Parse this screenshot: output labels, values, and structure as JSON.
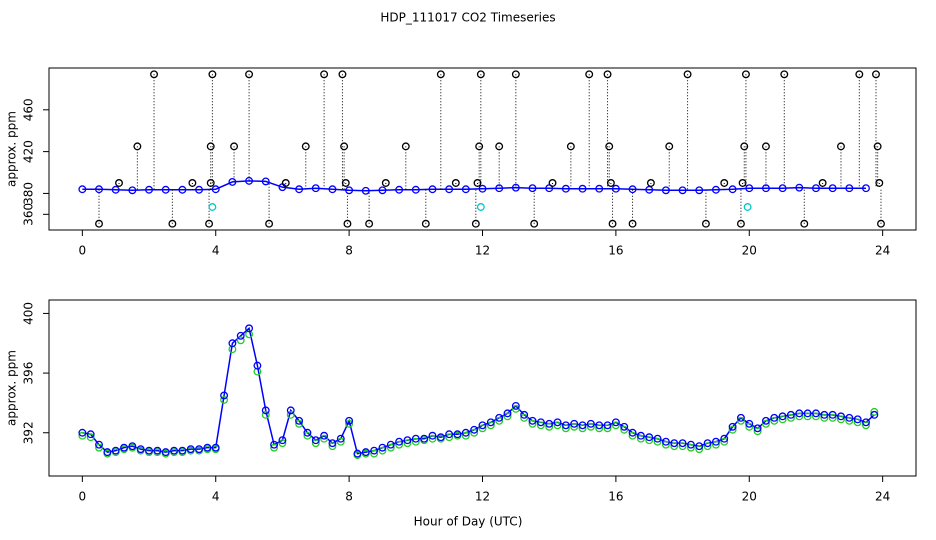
{
  "chart_data": [
    {
      "type": "scatter",
      "title": "HDP_111017  CO2 Timeseries",
      "ylabel": "approx. ppm",
      "xlim": [
        -1,
        25
      ],
      "xticks": [
        0,
        4,
        8,
        12,
        16,
        20,
        24
      ],
      "ylim": [
        345,
        500
      ],
      "yticks": [
        360,
        380,
        420,
        460
      ],
      "series": [
        {
          "color": "#0000ff",
          "connect": true,
          "x": [
            0,
            0.5,
            1,
            1.5,
            2,
            2.5,
            3,
            3.5,
            4,
            4.5,
            5,
            5.5,
            6,
            6.5,
            7,
            7.5,
            8,
            8.5,
            9,
            9.5,
            10,
            10.5,
            11,
            11.5,
            12,
            12.5,
            13,
            13.5,
            14,
            14.5,
            15,
            15.5,
            16,
            16.5,
            17,
            17.5,
            18,
            18.5,
            19,
            19.5,
            20,
            20.5,
            21,
            21.5,
            22,
            22.5,
            23,
            23.5
          ],
          "values": [
            384,
            384,
            383.5,
            383,
            383.5,
            383.5,
            383.5,
            383.5,
            384,
            391,
            392,
            391.5,
            386,
            384,
            385,
            384,
            383,
            382.5,
            383,
            383.5,
            383.5,
            384,
            384,
            384,
            384.5,
            385,
            385.5,
            385,
            385,
            384.5,
            384.5,
            384.5,
            384.5,
            384,
            383.5,
            383,
            383,
            383,
            383.5,
            384,
            385,
            385,
            385,
            385.5,
            385,
            385,
            385,
            385
          ]
        },
        {
          "color": "#000000",
          "drops": true,
          "x": [
            0.5,
            1.1,
            1.65,
            2.15,
            2.7,
            3.3,
            3.8,
            3.85,
            3.85,
            3.9,
            4.55,
            5.0,
            5.6,
            6.1,
            6.7,
            7.25,
            7.8,
            7.85,
            7.9,
            7.95,
            8.6,
            9.1,
            9.7,
            10.3,
            10.75,
            11.2,
            11.8,
            11.85,
            11.9,
            11.95,
            12.5,
            13.0,
            13.55,
            14.1,
            14.65,
            15.2,
            15.75,
            15.8,
            15.85,
            15.9,
            16.5,
            17.05,
            17.6,
            18.15,
            18.7,
            19.25,
            19.75,
            19.8,
            19.85,
            19.9,
            20.5,
            21.05,
            21.65,
            22.2,
            22.75,
            23.3,
            23.8,
            23.85,
            23.9,
            23.95
          ],
          "values": [
            351,
            390,
            425,
            494,
            351,
            390,
            351,
            390,
            425,
            494,
            425,
            494,
            351,
            390,
            425,
            494,
            494,
            425,
            390,
            351,
            351,
            390,
            425,
            351,
            494,
            390,
            351,
            390,
            425,
            494,
            425,
            494,
            351,
            390,
            425,
            494,
            494,
            425,
            390,
            351,
            351,
            390,
            425,
            494,
            351,
            390,
            351,
            390,
            425,
            494,
            425,
            494,
            351,
            390,
            425,
            494,
            494,
            425,
            390,
            351
          ]
        },
        {
          "color": "#00c8c8",
          "x": [
            3.9,
            11.95,
            19.95
          ],
          "values": [
            367,
            367,
            367
          ]
        }
      ]
    },
    {
      "type": "scatter",
      "ylabel": "approx. ppm",
      "xlabel": "Hour of Day (UTC)",
      "xlim": [
        -1,
        25
      ],
      "xticks": [
        0,
        4,
        8,
        12,
        16,
        20,
        24
      ],
      "ylim": [
        389.1,
        400.9
      ],
      "yticks": [
        392,
        396,
        400
      ],
      "series": [
        {
          "color": "#22cc22",
          "x": [
            0,
            0.25,
            0.5,
            0.75,
            1,
            1.25,
            1.5,
            1.75,
            2,
            2.25,
            2.5,
            2.75,
            3,
            3.25,
            3.5,
            3.75,
            4,
            4.25,
            4.5,
            4.75,
            5,
            5.25,
            5.5,
            5.75,
            6,
            6.25,
            6.5,
            6.75,
            7,
            7.25,
            7.5,
            7.75,
            8,
            8.25,
            8.5,
            8.75,
            9,
            9.25,
            9.5,
            9.75,
            10,
            10.25,
            10.5,
            10.75,
            11,
            11.25,
            11.5,
            11.75,
            12,
            12.25,
            12.5,
            12.75,
            13,
            13.25,
            13.5,
            13.75,
            14,
            14.25,
            14.5,
            14.75,
            15,
            15.25,
            15.5,
            15.75,
            16,
            16.25,
            16.5,
            16.75,
            17,
            17.25,
            17.5,
            17.75,
            18,
            18.25,
            18.5,
            18.75,
            19,
            19.25,
            19.5,
            19.75,
            20,
            20.25,
            20.5,
            20.75,
            21,
            21.25,
            21.5,
            21.75,
            22,
            22.25,
            22.5,
            22.75,
            23,
            23.25,
            23.5,
            23.75
          ],
          "values": [
            391.8,
            391.7,
            391.0,
            390.6,
            390.7,
            390.9,
            391.0,
            390.8,
            390.7,
            390.7,
            390.6,
            390.7,
            390.7,
            390.8,
            390.8,
            390.9,
            390.9,
            394.2,
            397.6,
            398.2,
            398.6,
            396.1,
            393.2,
            391.0,
            391.3,
            393.2,
            392.6,
            391.8,
            391.3,
            391.6,
            391.1,
            391.4,
            392.6,
            390.5,
            390.6,
            390.6,
            390.8,
            391.0,
            391.2,
            391.3,
            391.4,
            391.5,
            391.6,
            391.6,
            391.7,
            391.8,
            391.8,
            392.0,
            392.3,
            392.5,
            392.8,
            393.1,
            393.6,
            393.0,
            392.6,
            392.5,
            392.4,
            392.5,
            392.3,
            392.4,
            392.3,
            392.4,
            392.3,
            392.3,
            392.5,
            392.2,
            391.8,
            391.6,
            391.5,
            391.4,
            391.2,
            391.1,
            391.1,
            391.0,
            390.9,
            391.1,
            391.2,
            391.4,
            392.2,
            392.8,
            392.4,
            392.1,
            392.6,
            392.8,
            392.9,
            393.0,
            393.1,
            393.1,
            393.1,
            393.0,
            393.0,
            392.9,
            392.8,
            392.7,
            392.5,
            393.4
          ]
        },
        {
          "color": "#0000ff",
          "connect": true,
          "x": [
            0,
            0.25,
            0.5,
            0.75,
            1,
            1.25,
            1.5,
            1.75,
            2,
            2.25,
            2.5,
            2.75,
            3,
            3.25,
            3.5,
            3.75,
            4,
            4.25,
            4.5,
            4.75,
            5,
            5.25,
            5.5,
            5.75,
            6,
            6.25,
            6.5,
            6.75,
            7,
            7.25,
            7.5,
            7.75,
            8,
            8.25,
            8.5,
            8.75,
            9,
            9.25,
            9.5,
            9.75,
            10,
            10.25,
            10.5,
            10.75,
            11,
            11.25,
            11.5,
            11.75,
            12,
            12.25,
            12.5,
            12.75,
            13,
            13.25,
            13.5,
            13.75,
            14,
            14.25,
            14.5,
            14.75,
            15,
            15.25,
            15.5,
            15.75,
            16,
            16.25,
            16.5,
            16.75,
            17,
            17.25,
            17.5,
            17.75,
            18,
            18.25,
            18.5,
            18.75,
            19,
            19.25,
            19.5,
            19.75,
            20,
            20.25,
            20.5,
            20.75,
            21,
            21.25,
            21.5,
            21.75,
            22,
            22.25,
            22.5,
            22.75,
            23,
            23.25,
            23.5,
            23.75
          ],
          "values": [
            392.0,
            391.9,
            391.2,
            390.7,
            390.8,
            391.0,
            391.1,
            390.9,
            390.8,
            390.8,
            390.7,
            390.8,
            390.8,
            390.9,
            390.9,
            391.0,
            391.0,
            394.5,
            398.0,
            398.5,
            399.0,
            396.5,
            393.5,
            391.2,
            391.5,
            393.5,
            392.8,
            392.0,
            391.5,
            391.8,
            391.3,
            391.6,
            392.8,
            390.6,
            390.7,
            390.8,
            391.0,
            391.2,
            391.4,
            391.5,
            391.6,
            391.6,
            391.8,
            391.7,
            391.9,
            391.9,
            392.0,
            392.2,
            392.5,
            392.7,
            393.0,
            393.3,
            393.8,
            393.2,
            392.8,
            392.7,
            392.6,
            392.7,
            392.5,
            392.6,
            392.5,
            392.6,
            392.5,
            392.5,
            392.7,
            392.4,
            392.0,
            391.8,
            391.7,
            391.6,
            391.4,
            391.3,
            391.3,
            391.2,
            391.1,
            391.3,
            391.4,
            391.6,
            392.4,
            393.0,
            392.6,
            392.3,
            392.8,
            393.0,
            393.1,
            393.2,
            393.3,
            393.3,
            393.3,
            393.2,
            393.2,
            393.1,
            393.0,
            392.9,
            392.7,
            393.2
          ]
        }
      ]
    }
  ]
}
